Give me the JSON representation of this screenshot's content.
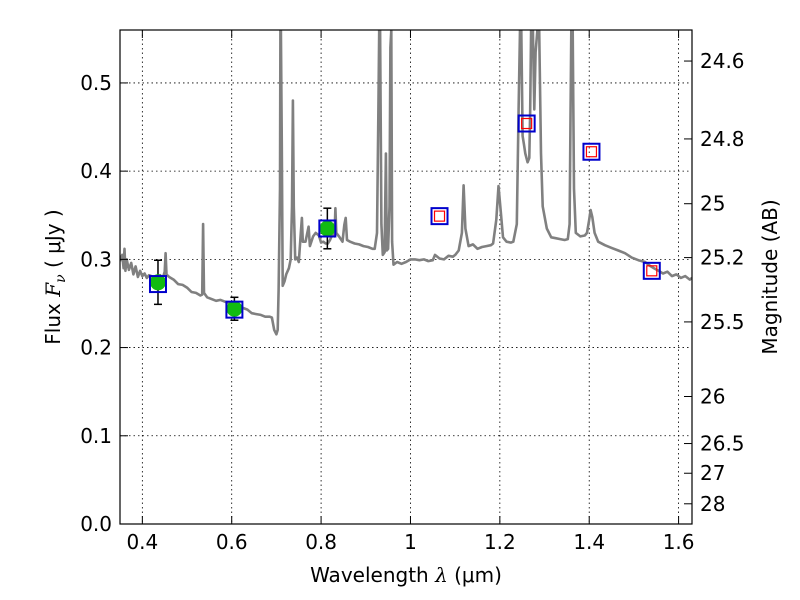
{
  "chart_data": {
    "type": "scatter",
    "xlabel": "Wavelength  λ (μm)",
    "xlabel_parts": {
      "prefix": "Wavelength  ",
      "var": "λ",
      "unit": " (μm)"
    },
    "ylabel": "Flux  Fν  ( μJy )",
    "ylabel_parts": {
      "prefix": "Flux  ",
      "var": "F",
      "sub": "ν",
      "unit": "  ( μJy )"
    },
    "y2label": "Magnitude (AB)",
    "xlim": [
      0.35,
      1.63
    ],
    "ylim": [
      0.0,
      0.56
    ],
    "x_ticks": [
      {
        "v": 0.4,
        "label": "0.4"
      },
      {
        "v": 0.6,
        "label": "0.6"
      },
      {
        "v": 0.8,
        "label": "0.8"
      },
      {
        "v": 1.0,
        "label": "1"
      },
      {
        "v": 1.2,
        "label": "1.2"
      },
      {
        "v": 1.4,
        "label": "1.4"
      },
      {
        "v": 1.6,
        "label": "1.6"
      }
    ],
    "y_ticks": [
      {
        "v": 0.0,
        "label": "0.0"
      },
      {
        "v": 0.1,
        "label": "0.1"
      },
      {
        "v": 0.2,
        "label": "0.2"
      },
      {
        "v": 0.3,
        "label": "0.3"
      },
      {
        "v": 0.4,
        "label": "0.4"
      },
      {
        "v": 0.5,
        "label": "0.5"
      }
    ],
    "y2_ticks": [
      {
        "mag": 24.6,
        "label": "24.6"
      },
      {
        "mag": 24.8,
        "label": "24.8"
      },
      {
        "mag": 25.0,
        "label": "25"
      },
      {
        "mag": 25.2,
        "label": "25.2"
      },
      {
        "mag": 25.5,
        "label": "25.5"
      },
      {
        "mag": 26.0,
        "label": "26"
      },
      {
        "mag": 26.5,
        "label": "26.5"
      },
      {
        "mag": 27.0,
        "label": "27"
      },
      {
        "mag": 28.0,
        "label": "28"
      }
    ],
    "grid": true,
    "model_spectrum": {
      "color": "#808080",
      "points": [
        [
          0.35,
          0.298
        ],
        [
          0.355,
          0.305
        ],
        [
          0.358,
          0.29
        ],
        [
          0.36,
          0.312
        ],
        [
          0.362,
          0.287
        ],
        [
          0.365,
          0.3
        ],
        [
          0.37,
          0.288
        ],
        [
          0.375,
          0.296
        ],
        [
          0.38,
          0.283
        ],
        [
          0.385,
          0.292
        ],
        [
          0.39,
          0.28
        ],
        [
          0.395,
          0.287
        ],
        [
          0.4,
          0.281
        ],
        [
          0.405,
          0.284
        ],
        [
          0.41,
          0.279
        ],
        [
          0.415,
          0.282
        ],
        [
          0.42,
          0.281
        ],
        [
          0.425,
          0.279
        ],
        [
          0.43,
          0.278
        ],
        [
          0.435,
          0.277
        ],
        [
          0.44,
          0.282
        ],
        [
          0.445,
          0.278
        ],
        [
          0.45,
          0.286
        ],
        [
          0.452,
          0.307
        ],
        [
          0.454,
          0.283
        ],
        [
          0.46,
          0.28
        ],
        [
          0.47,
          0.277
        ],
        [
          0.48,
          0.272
        ],
        [
          0.49,
          0.271
        ],
        [
          0.5,
          0.268
        ],
        [
          0.51,
          0.263
        ],
        [
          0.52,
          0.262
        ],
        [
          0.53,
          0.259
        ],
        [
          0.534,
          0.26
        ],
        [
          0.536,
          0.34
        ],
        [
          0.538,
          0.262
        ],
        [
          0.545,
          0.257
        ],
        [
          0.555,
          0.255
        ],
        [
          0.565,
          0.253
        ],
        [
          0.575,
          0.254
        ],
        [
          0.585,
          0.252
        ],
        [
          0.595,
          0.25
        ],
        [
          0.605,
          0.25
        ],
        [
          0.615,
          0.249
        ],
        [
          0.625,
          0.245
        ],
        [
          0.635,
          0.243
        ],
        [
          0.645,
          0.239
        ],
        [
          0.655,
          0.238
        ],
        [
          0.665,
          0.237
        ],
        [
          0.675,
          0.235
        ],
        [
          0.685,
          0.235
        ],
        [
          0.69,
          0.234
        ],
        [
          0.695,
          0.22
        ],
        [
          0.7,
          0.215
        ],
        [
          0.703,
          0.22
        ],
        [
          0.705,
          0.265
        ],
        [
          0.708,
          0.38
        ],
        [
          0.709,
          0.56
        ],
        [
          0.71,
          0.56
        ],
        [
          0.712,
          0.43
        ],
        [
          0.714,
          0.27
        ],
        [
          0.718,
          0.275
        ],
        [
          0.722,
          0.283
        ],
        [
          0.728,
          0.29
        ],
        [
          0.732,
          0.3
        ],
        [
          0.735,
          0.36
        ],
        [
          0.737,
          0.48
        ],
        [
          0.739,
          0.36
        ],
        [
          0.742,
          0.3
        ],
        [
          0.746,
          0.302
        ],
        [
          0.75,
          0.297
        ],
        [
          0.755,
          0.333
        ],
        [
          0.757,
          0.347
        ],
        [
          0.759,
          0.32
        ],
        [
          0.765,
          0.32
        ],
        [
          0.772,
          0.337
        ],
        [
          0.775,
          0.315
        ],
        [
          0.782,
          0.326
        ],
        [
          0.788,
          0.33
        ],
        [
          0.795,
          0.327
        ],
        [
          0.8,
          0.319
        ],
        [
          0.805,
          0.32
        ],
        [
          0.81,
          0.318
        ],
        [
          0.815,
          0.318
        ],
        [
          0.82,
          0.322
        ],
        [
          0.825,
          0.328
        ],
        [
          0.83,
          0.326
        ],
        [
          0.832,
          0.358
        ],
        [
          0.834,
          0.33
        ],
        [
          0.84,
          0.326
        ],
        [
          0.848,
          0.32
        ],
        [
          0.852,
          0.339
        ],
        [
          0.855,
          0.347
        ],
        [
          0.858,
          0.322
        ],
        [
          0.865,
          0.32
        ],
        [
          0.875,
          0.318
        ],
        [
          0.885,
          0.317
        ],
        [
          0.895,
          0.315
        ],
        [
          0.905,
          0.314
        ],
        [
          0.915,
          0.312
        ],
        [
          0.92,
          0.312
        ],
        [
          0.925,
          0.33
        ],
        [
          0.928,
          0.46
        ],
        [
          0.93,
          0.56
        ],
        [
          0.932,
          0.56
        ],
        [
          0.935,
          0.34
        ],
        [
          0.938,
          0.305
        ],
        [
          0.942,
          0.308
        ],
        [
          0.945,
          0.42
        ],
        [
          0.947,
          0.31
        ],
        [
          0.95,
          0.312
        ],
        [
          0.953,
          0.36
        ],
        [
          0.955,
          0.54
        ],
        [
          0.957,
          0.56
        ],
        [
          0.959,
          0.32
        ],
        [
          0.962,
          0.294
        ],
        [
          0.97,
          0.297
        ],
        [
          0.98,
          0.295
        ],
        [
          0.99,
          0.297
        ],
        [
          1.0,
          0.3
        ],
        [
          1.01,
          0.3
        ],
        [
          1.02,
          0.299
        ],
        [
          1.03,
          0.3
        ],
        [
          1.04,
          0.298
        ],
        [
          1.05,
          0.299
        ],
        [
          1.055,
          0.305
        ],
        [
          1.065,
          0.301
        ],
        [
          1.075,
          0.3
        ],
        [
          1.085,
          0.304
        ],
        [
          1.095,
          0.303
        ],
        [
          1.1,
          0.305
        ],
        [
          1.108,
          0.31
        ],
        [
          1.115,
          0.33
        ],
        [
          1.119,
          0.384
        ],
        [
          1.123,
          0.335
        ],
        [
          1.13,
          0.315
        ],
        [
          1.14,
          0.317
        ],
        [
          1.15,
          0.312
        ],
        [
          1.16,
          0.314
        ],
        [
          1.17,
          0.315
        ],
        [
          1.18,
          0.316
        ],
        [
          1.185,
          0.318
        ],
        [
          1.192,
          0.345
        ],
        [
          1.197,
          0.383
        ],
        [
          1.202,
          0.355
        ],
        [
          1.207,
          0.325
        ],
        [
          1.215,
          0.32
        ],
        [
          1.225,
          0.319
        ],
        [
          1.23,
          0.32
        ],
        [
          1.238,
          0.34
        ],
        [
          1.242,
          0.47
        ],
        [
          1.245,
          0.56
        ],
        [
          1.248,
          0.56
        ],
        [
          1.251,
          0.44
        ],
        [
          1.254,
          0.43
        ],
        [
          1.257,
          0.42
        ],
        [
          1.262,
          0.41
        ],
        [
          1.266,
          0.415
        ],
        [
          1.268,
          0.47
        ],
        [
          1.27,
          0.56
        ],
        [
          1.274,
          0.56
        ],
        [
          1.277,
          0.47
        ],
        [
          1.28,
          0.535
        ],
        [
          1.284,
          0.56
        ],
        [
          1.288,
          0.56
        ],
        [
          1.292,
          0.42
        ],
        [
          1.296,
          0.36
        ],
        [
          1.305,
          0.335
        ],
        [
          1.315,
          0.325
        ],
        [
          1.325,
          0.324
        ],
        [
          1.335,
          0.323
        ],
        [
          1.345,
          0.322
        ],
        [
          1.352,
          0.323
        ],
        [
          1.356,
          0.34
        ],
        [
          1.358,
          0.46
        ],
        [
          1.36,
          0.56
        ],
        [
          1.363,
          0.56
        ],
        [
          1.366,
          0.38
        ],
        [
          1.37,
          0.33
        ],
        [
          1.38,
          0.326
        ],
        [
          1.39,
          0.327
        ],
        [
          1.395,
          0.33
        ],
        [
          1.4,
          0.345
        ],
        [
          1.403,
          0.356
        ],
        [
          1.407,
          0.348
        ],
        [
          1.412,
          0.33
        ],
        [
          1.42,
          0.32
        ],
        [
          1.435,
          0.316
        ],
        [
          1.45,
          0.313
        ],
        [
          1.465,
          0.31
        ],
        [
          1.48,
          0.307
        ],
        [
          1.495,
          0.302
        ],
        [
          1.51,
          0.299
        ],
        [
          1.525,
          0.297
        ],
        [
          1.535,
          0.293
        ],
        [
          1.545,
          0.29
        ],
        [
          1.555,
          0.287
        ],
        [
          1.565,
          0.284
        ],
        [
          1.575,
          0.286
        ],
        [
          1.585,
          0.281
        ],
        [
          1.595,
          0.283
        ],
        [
          1.605,
          0.279
        ],
        [
          1.615,
          0.281
        ],
        [
          1.625,
          0.277
        ],
        [
          1.63,
          0.279
        ]
      ]
    },
    "model_photometry": {
      "marker": "square",
      "color": "#0000cc",
      "points": [
        {
          "x": 0.435,
          "y": 0.272
        },
        {
          "x": 0.606,
          "y": 0.243
        },
        {
          "x": 0.814,
          "y": 0.335
        },
        {
          "x": 1.065,
          "y": 0.349
        },
        {
          "x": 1.26,
          "y": 0.454
        },
        {
          "x": 1.405,
          "y": 0.422
        },
        {
          "x": 1.54,
          "y": 0.287
        }
      ]
    },
    "upper_limits": {
      "marker": "square",
      "color": "#ff0000",
      "points": [
        {
          "x": 1.065,
          "y": 0.349
        },
        {
          "x": 1.26,
          "y": 0.454
        },
        {
          "x": 1.405,
          "y": 0.422
        },
        {
          "x": 1.54,
          "y": 0.287
        }
      ]
    },
    "observed": {
      "marker": "circle",
      "color": "#11bb11",
      "points": [
        {
          "x": 0.435,
          "y": 0.274,
          "err": 0.025
        },
        {
          "x": 0.606,
          "y": 0.244,
          "err": 0.013
        },
        {
          "x": 0.814,
          "y": 0.335,
          "err": 0.023
        }
      ]
    }
  }
}
